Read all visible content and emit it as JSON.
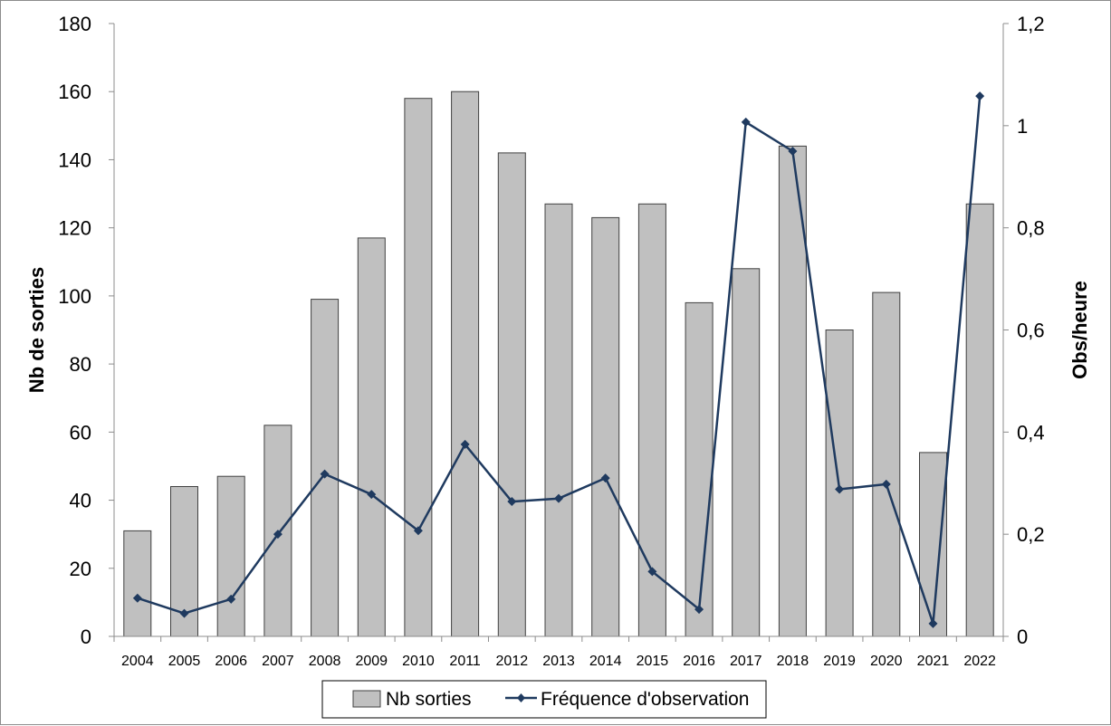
{
  "chart_data": {
    "type": "bar",
    "categories": [
      "2004",
      "2005",
      "2006",
      "2007",
      "2008",
      "2009",
      "2010",
      "2011",
      "2012",
      "2013",
      "2014",
      "2015",
      "2016",
      "2017",
      "2018",
      "2019",
      "2020",
      "2021",
      "2022"
    ],
    "series": [
      {
        "name": "Nb sorties",
        "type": "bar",
        "axis": "left",
        "color": "#c0c0c0",
        "values": [
          31,
          44,
          47,
          62,
          99,
          117,
          158,
          160,
          142,
          127,
          123,
          127,
          98,
          108,
          144,
          90,
          101,
          54,
          127
        ]
      },
      {
        "name": "Fréquence d'observation",
        "type": "line",
        "axis": "right",
        "color": "#1f3a5f",
        "marker": "diamond",
        "values": [
          0.075,
          0.045,
          0.073,
          0.2,
          0.318,
          0.278,
          0.207,
          0.376,
          0.264,
          0.27,
          0.31,
          0.127,
          0.053,
          1.007,
          0.95,
          0.288,
          0.298,
          0.025,
          1.058
        ]
      }
    ],
    "y_left": {
      "label": "Nb de sorties",
      "range": [
        0,
        180
      ],
      "ticks": [
        "0",
        "20",
        "40",
        "60",
        "80",
        "100",
        "120",
        "140",
        "160",
        "180"
      ]
    },
    "y_right": {
      "label": "Obs/heure",
      "range": [
        0,
        1.2
      ],
      "ticks": [
        "0",
        "0,2",
        "0,4",
        "0,6",
        "0,8",
        "1",
        "1,2"
      ]
    },
    "grid": false,
    "legend": {
      "position": "bottom",
      "entries": [
        "Nb sorties",
        "Fréquence d'observation"
      ]
    }
  }
}
